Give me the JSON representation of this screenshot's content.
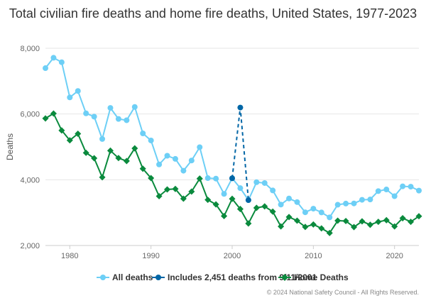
{
  "colors": {
    "all_deaths": "#6dcff6",
    "includes_911": "#0066a6",
    "home_deaths": "#0a8a3d",
    "grid": "#e6e6e6",
    "axis_text": "#666666"
  },
  "chart_data": {
    "type": "line",
    "title": "Total civilian fire deaths and home fire deaths, United States, 1977-2023",
    "xlabel": "",
    "ylabel": "Deaths",
    "xlim": [
      1977,
      2023
    ],
    "ylim": [
      2000,
      8000
    ],
    "xticks": [
      1980,
      1990,
      2000,
      2010,
      2020
    ],
    "xtick_labels": [
      "1980",
      "1990",
      "2000",
      "2010",
      "2020"
    ],
    "yticks": [
      2000,
      4000,
      6000,
      8000
    ],
    "ytick_labels": [
      "2,000",
      "4,000",
      "6,000",
      "8,000"
    ],
    "series": [
      {
        "name": "All deaths",
        "x": [
          1977,
          1978,
          1979,
          1980,
          1981,
          1982,
          1983,
          1984,
          1985,
          1986,
          1987,
          1988,
          1989,
          1990,
          1991,
          1992,
          1993,
          1994,
          1995,
          1996,
          1997,
          1998,
          1999,
          2000,
          2001,
          2002,
          2003,
          2004,
          2005,
          2006,
          2007,
          2008,
          2009,
          2010,
          2011,
          2012,
          2013,
          2014,
          2015,
          2016,
          2017,
          2018,
          2019,
          2020,
          2021,
          2022,
          2023
        ],
        "values": [
          7395,
          7710,
          7575,
          6505,
          6700,
          6020,
          5920,
          5240,
          6185,
          5850,
          5810,
          6215,
          5410,
          5195,
          4465,
          4730,
          4635,
          4275,
          4585,
          4990,
          4050,
          4035,
          3570,
          4045,
          3745,
          3380,
          3925,
          3900,
          3675,
          3245,
          3430,
          3320,
          3010,
          3120,
          3005,
          2855,
          3240,
          3275,
          3280,
          3390,
          3400,
          3655,
          3704,
          3500,
          3800,
          3790,
          3670
        ]
      },
      {
        "name": "Includes 2,451 deaths from 9/11/2001",
        "x": [
          2000,
          2001,
          2002
        ],
        "values": [
          4045,
          6196,
          3380
        ]
      },
      {
        "name": "Home Deaths",
        "x": [
          1977,
          1978,
          1979,
          1980,
          1981,
          1982,
          1983,
          1984,
          1985,
          1986,
          1987,
          1988,
          1989,
          1990,
          1991,
          1992,
          1993,
          1994,
          1995,
          1996,
          1997,
          1998,
          1999,
          2000,
          2001,
          2002,
          2003,
          2004,
          2005,
          2006,
          2007,
          2008,
          2009,
          2010,
          2011,
          2012,
          2013,
          2014,
          2015,
          2016,
          2017,
          2018,
          2019,
          2020,
          2021,
          2022,
          2023
        ],
        "values": [
          5865,
          6015,
          5500,
          5200,
          5400,
          4820,
          4655,
          4075,
          4885,
          4660,
          4570,
          4955,
          4335,
          4050,
          3500,
          3705,
          3720,
          3425,
          3640,
          4035,
          3390,
          3250,
          2895,
          3420,
          3110,
          2670,
          3145,
          3190,
          3030,
          2580,
          2865,
          2755,
          2565,
          2640,
          2520,
          2380,
          2755,
          2745,
          2560,
          2735,
          2630,
          2720,
          2770,
          2580,
          2830,
          2720,
          2890
        ]
      }
    ]
  },
  "legend": {
    "all_deaths": "All deaths",
    "includes_911": "Includes 2,451 deaths from 9/11/2001",
    "home_deaths": "Home Deaths"
  },
  "credit": "© 2024 National Safety Council - All Rights Reserved."
}
